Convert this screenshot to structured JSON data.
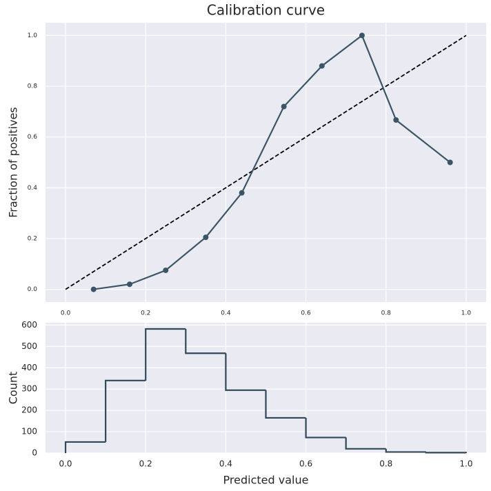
{
  "chart_data": [
    {
      "type": "line",
      "title": "Calibration curve",
      "ylabel": "Fraction of positives",
      "xlim": [
        -0.05,
        1.05
      ],
      "ylim": [
        -0.05,
        1.05
      ],
      "xticks": [
        {
          "value": 0,
          "label": "0.0"
        },
        0.2,
        0.4,
        0.6,
        0.8,
        {
          "value": 1,
          "label": "1.0"
        }
      ],
      "yticks": [
        {
          "value": 0,
          "label": "0.0"
        },
        0.2,
        0.4,
        0.6,
        0.8,
        {
          "value": 1,
          "label": "1.0"
        }
      ],
      "grid": true,
      "series": [
        {
          "color": "#000000",
          "dashed": true,
          "markers": false,
          "x": [
            0,
            1
          ],
          "values": [
            0,
            1
          ]
        },
        {
          "color": "#3b5566",
          "dashed": false,
          "markers": true,
          "x": [
            0.07,
            0.16,
            0.25,
            0.35,
            0.44,
            0.545,
            0.64,
            0.74,
            0.825,
            0.96
          ],
          "values": [
            0.0,
            0.02,
            0.075,
            0.205,
            0.38,
            0.72,
            0.88,
            1.0,
            0.667,
            0.5
          ]
        }
      ]
    },
    {
      "type": "histogram",
      "xlabel": "Predicted value",
      "ylabel": "Count",
      "color": "#2f4858",
      "bins": [
        0,
        0.1,
        0.2,
        0.3,
        0.4,
        0.5,
        0.6,
        0.7,
        0.8,
        0.9,
        1.0
      ],
      "counts": [
        52,
        340,
        582,
        468,
        295,
        165,
        73,
        20,
        5,
        2
      ],
      "xlim": [
        -0.05,
        1.05
      ],
      "ylim": [
        0,
        611
      ],
      "xticks": [
        {
          "value": 0,
          "label": "0.0"
        },
        0.2,
        0.4,
        0.6,
        0.8,
        {
          "value": 1,
          "label": "1.0"
        }
      ],
      "yticks": [
        0,
        100,
        200,
        300,
        400,
        500,
        600
      ],
      "grid": true
    }
  ]
}
